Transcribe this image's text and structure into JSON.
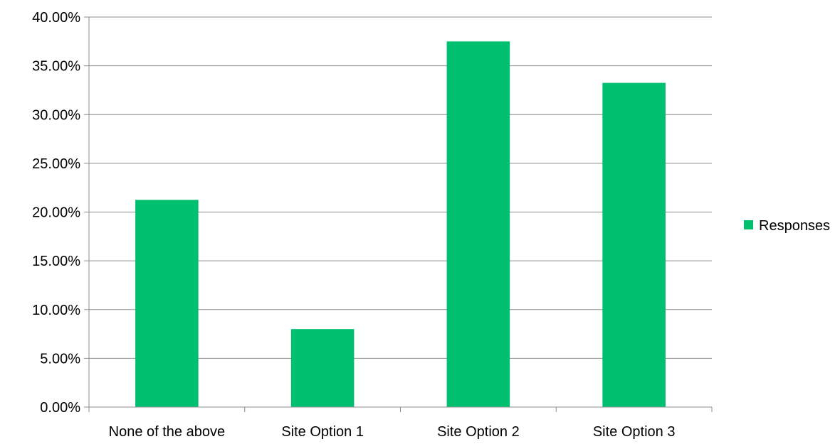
{
  "chart_data": {
    "type": "bar",
    "title": "",
    "xlabel": "",
    "ylabel": "",
    "categories": [
      "None of the above",
      "Site Option 1",
      "Site Option 2",
      "Site Option 3"
    ],
    "series": [
      {
        "name": "Responses",
        "values": [
          21.25,
          8.0,
          37.5,
          33.25
        ],
        "color": "#00bf6f"
      }
    ],
    "ylim": [
      0,
      40
    ],
    "y_tick_step": 5,
    "y_tick_format": "percent_2dp",
    "y_ticks": [
      "0.00%",
      "5.00%",
      "10.00%",
      "15.00%",
      "20.00%",
      "25.00%",
      "30.00%",
      "35.00%",
      "40.00%"
    ],
    "grid": true,
    "gridline_color": "#8c8c8c",
    "axis_color": "#8c8c8c",
    "legend": {
      "position": "right",
      "entries": [
        "Responses"
      ]
    }
  }
}
